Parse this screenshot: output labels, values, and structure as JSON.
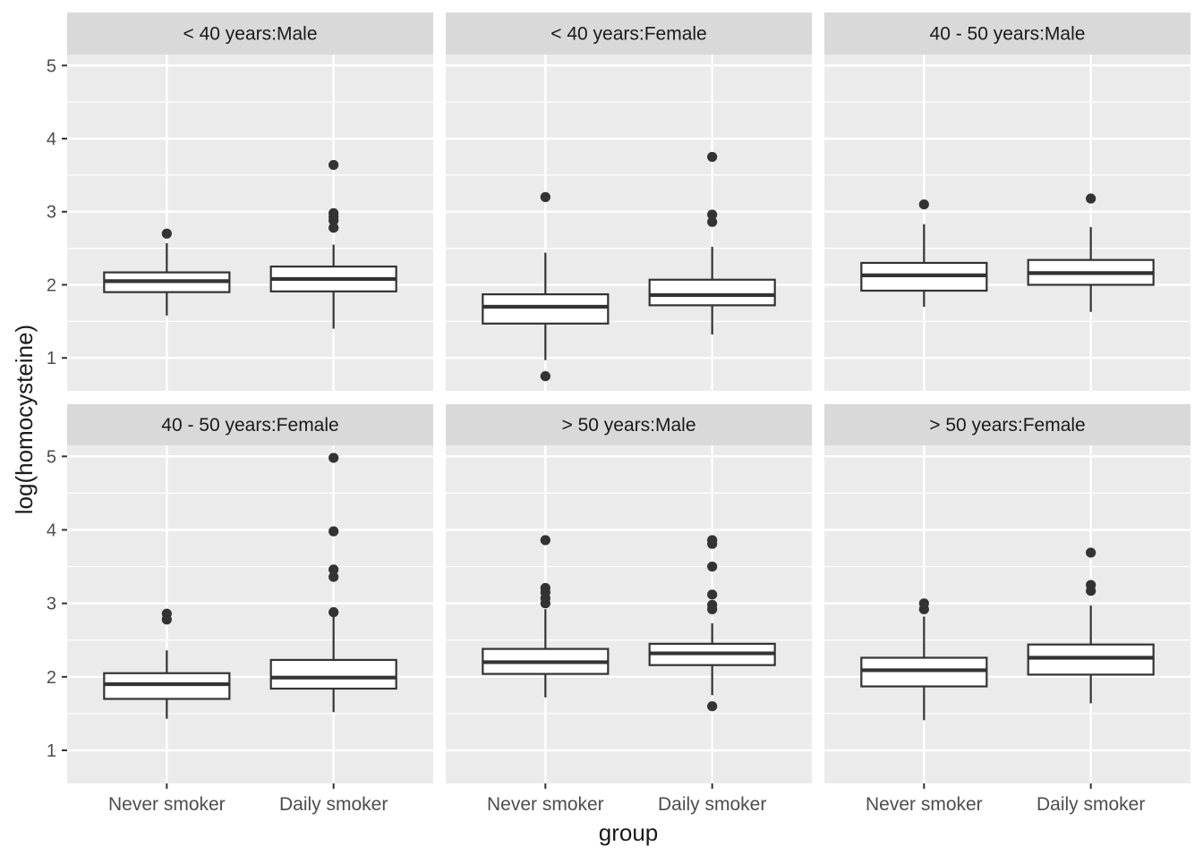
{
  "chart_data": {
    "type": "boxplot",
    "xlabel": "group",
    "ylabel": "log(homocysteine)",
    "ylim": [
      0.55,
      5.15
    ],
    "y_ticks": [
      1,
      2,
      3,
      4,
      5
    ],
    "categories": [
      "Never smoker",
      "Daily smoker"
    ],
    "grid": true,
    "facet_layout": {
      "rows": 2,
      "cols": 3
    },
    "colors": {
      "panel_bg": "#ebebeb",
      "strip_bg": "#d9d9d9",
      "grid": "#ffffff",
      "box_fill": "#ffffff",
      "box_stroke": "#333333",
      "text": "#1a1a1a",
      "tick_text": "#4d4d4d"
    },
    "panels": [
      {
        "title": "< 40 years:Male",
        "boxes": [
          {
            "group": "Never smoker",
            "whisker_low": 1.58,
            "q1": 1.9,
            "median": 2.05,
            "q3": 2.17,
            "whisker_high": 2.57,
            "outliers": [
              2.7
            ]
          },
          {
            "group": "Daily smoker",
            "whisker_low": 1.4,
            "q1": 1.91,
            "median": 2.08,
            "q3": 2.25,
            "whisker_high": 2.55,
            "outliers": [
              2.78,
              2.88,
              2.93,
              2.98,
              3.64
            ]
          }
        ]
      },
      {
        "title": "< 40 years:Female",
        "boxes": [
          {
            "group": "Never smoker",
            "whisker_low": 0.97,
            "q1": 1.47,
            "median": 1.7,
            "q3": 1.87,
            "whisker_high": 2.44,
            "outliers": [
              0.75,
              3.2
            ]
          },
          {
            "group": "Daily smoker",
            "whisker_low": 1.32,
            "q1": 1.72,
            "median": 1.86,
            "q3": 2.07,
            "whisker_high": 2.52,
            "outliers": [
              2.86,
              2.96,
              3.75
            ]
          }
        ]
      },
      {
        "title": "40 - 50 years:Male",
        "boxes": [
          {
            "group": "Never smoker",
            "whisker_low": 1.7,
            "q1": 1.92,
            "median": 2.13,
            "q3": 2.3,
            "whisker_high": 2.83,
            "outliers": [
              3.1
            ]
          },
          {
            "group": "Daily smoker",
            "whisker_low": 1.63,
            "q1": 2.0,
            "median": 2.16,
            "q3": 2.34,
            "whisker_high": 2.79,
            "outliers": [
              3.18
            ]
          }
        ]
      },
      {
        "title": "40 - 50 years:Female",
        "boxes": [
          {
            "group": "Never smoker",
            "whisker_low": 1.43,
            "q1": 1.7,
            "median": 1.9,
            "q3": 2.05,
            "whisker_high": 2.36,
            "outliers": [
              2.78,
              2.86
            ]
          },
          {
            "group": "Daily smoker",
            "whisker_low": 1.52,
            "q1": 1.84,
            "median": 1.99,
            "q3": 2.23,
            "whisker_high": 2.82,
            "outliers": [
              2.88,
              3.36,
              3.46,
              3.98,
              4.98
            ]
          }
        ]
      },
      {
        "title": "> 50 years:Male",
        "boxes": [
          {
            "group": "Never smoker",
            "whisker_low": 1.72,
            "q1": 2.04,
            "median": 2.2,
            "q3": 2.38,
            "whisker_high": 2.92,
            "outliers": [
              3.0,
              3.07,
              3.15,
              3.21,
              3.86
            ]
          },
          {
            "group": "Daily smoker",
            "whisker_low": 1.75,
            "q1": 2.16,
            "median": 2.32,
            "q3": 2.45,
            "whisker_high": 2.73,
            "outliers": [
              1.6,
              2.92,
              2.98,
              3.12,
              3.5,
              3.81,
              3.86
            ]
          }
        ]
      },
      {
        "title": "> 50 years:Female",
        "boxes": [
          {
            "group": "Never smoker",
            "whisker_low": 1.41,
            "q1": 1.87,
            "median": 2.09,
            "q3": 2.26,
            "whisker_high": 2.82,
            "outliers": [
              2.92,
              3.0
            ]
          },
          {
            "group": "Daily smoker",
            "whisker_low": 1.64,
            "q1": 2.03,
            "median": 2.26,
            "q3": 2.44,
            "whisker_high": 2.97,
            "outliers": [
              3.17,
              3.25,
              3.69
            ]
          }
        ]
      }
    ]
  }
}
